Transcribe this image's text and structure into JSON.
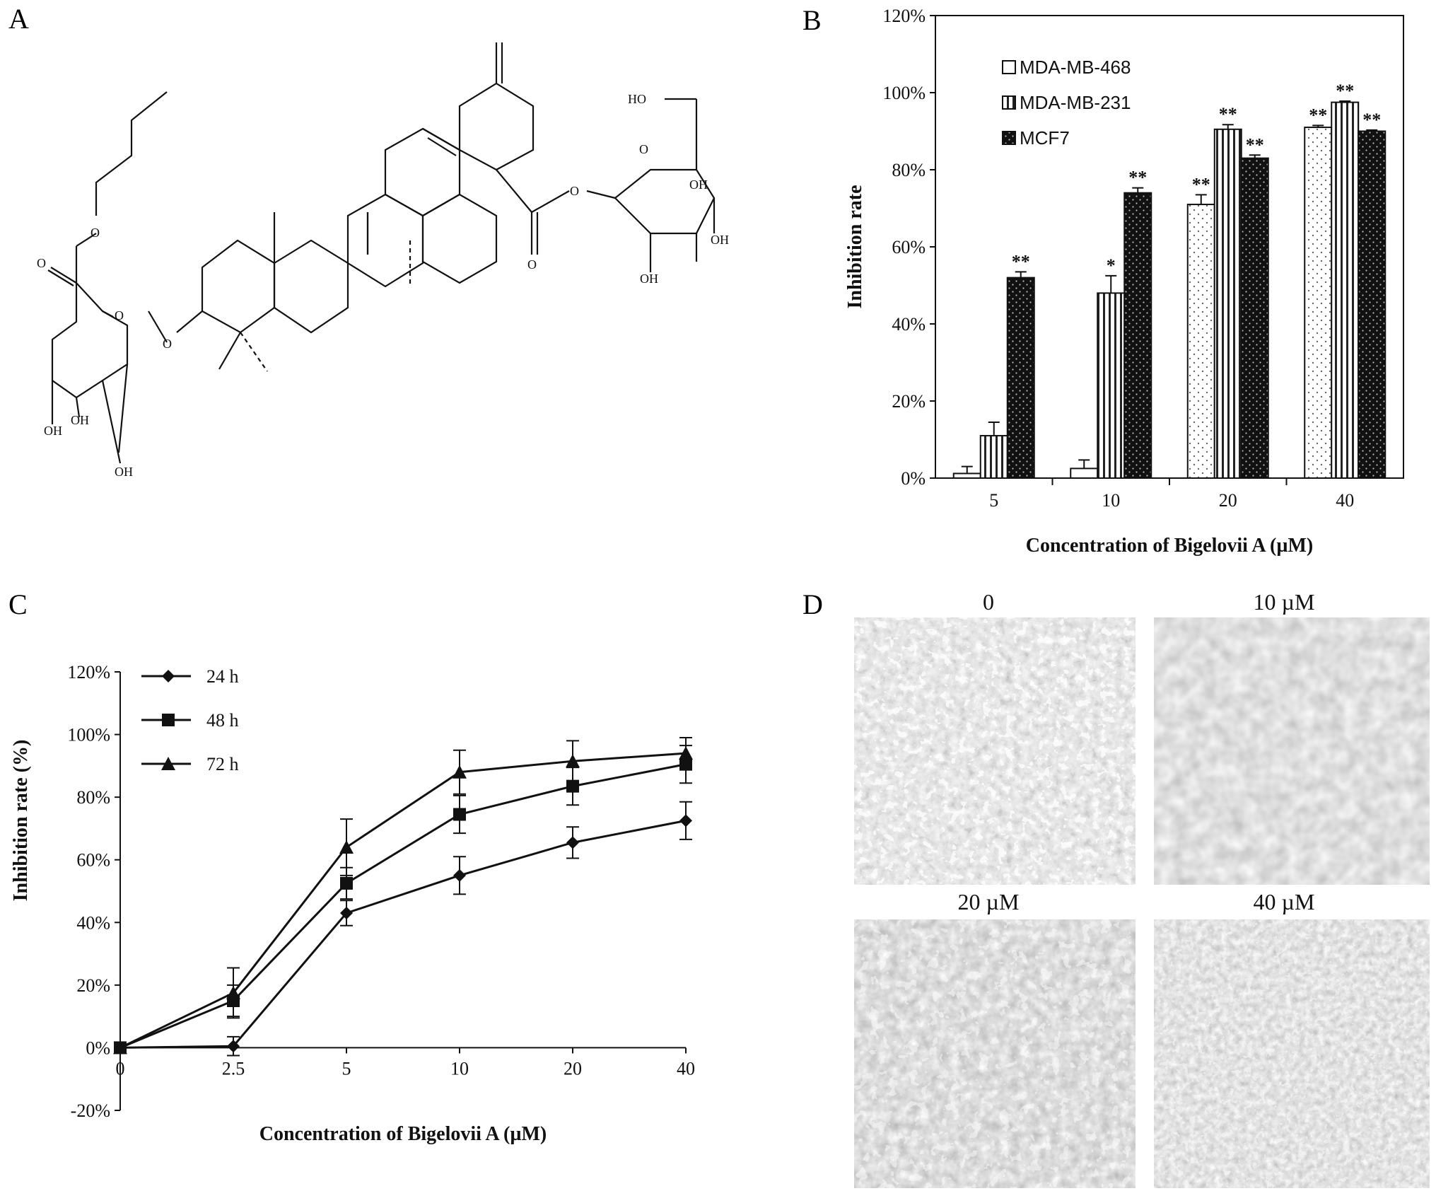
{
  "panels": {
    "a": {
      "letter": "A"
    },
    "b": {
      "letter": "B"
    },
    "c": {
      "letter": "C"
    },
    "d": {
      "letter": "D"
    }
  },
  "structure": {
    "labels": {
      "o_ester_carbonyl": "O",
      "o_ester": "O",
      "o_ring_left": "O",
      "o_link_left": "O",
      "oh_1": "OH",
      "oh_2": "OH",
      "oh_3": "OH",
      "o_ester_right": "O",
      "o_link_right": "O",
      "o_ring_right": "O",
      "ho_right": "HO",
      "oh_r1": "OH",
      "oh_r2": "OH",
      "oh_r3": "OH"
    }
  },
  "chart_data": [
    {
      "type": "bar",
      "panel": "B",
      "categories": [
        "5",
        "10",
        "20",
        "40"
      ],
      "series": [
        {
          "name": "MDA-MB-468",
          "pattern": "open",
          "values": [
            0.012,
            0.025,
            0.71,
            0.91
          ],
          "errors": [
            0.018,
            0.022,
            0.025,
            0.005
          ],
          "significance": [
            "",
            "",
            "**",
            "**"
          ]
        },
        {
          "name": "MDA-MB-231",
          "pattern": "vertical-lines",
          "values": [
            0.11,
            0.48,
            0.905,
            0.975
          ],
          "errors": [
            0.035,
            0.045,
            0.012,
            0.003
          ],
          "significance": [
            "",
            "*",
            "**",
            "**"
          ]
        },
        {
          "name": "MCF7",
          "pattern": "dark-dots",
          "values": [
            0.52,
            0.74,
            0.83,
            0.9
          ],
          "errors": [
            0.015,
            0.013,
            0.008,
            0.003
          ],
          "significance": [
            "**",
            "**",
            "**",
            "**"
          ]
        }
      ],
      "xlabel": "Concentration of Bigelovii A (µM)",
      "ylabel": "Inhibition rate",
      "yticks": [
        "0%",
        "20%",
        "40%",
        "60%",
        "80%",
        "100%",
        "120%"
      ],
      "ylim": [
        0,
        1.2
      ],
      "legend_position": "top-left"
    },
    {
      "type": "line",
      "panel": "C",
      "x": [
        "0",
        "2.5",
        "5",
        "10",
        "20",
        "40"
      ],
      "series": [
        {
          "name": "24 h",
          "marker": "diamond",
          "values": [
            0.0,
            0.005,
            0.43,
            0.55,
            0.655,
            0.725
          ],
          "errors": [
            0.0,
            0.03,
            0.04,
            0.06,
            0.05,
            0.06
          ]
        },
        {
          "name": "48 h",
          "marker": "square",
          "values": [
            0.0,
            0.15,
            0.525,
            0.745,
            0.835,
            0.905
          ],
          "errors": [
            0.0,
            0.05,
            0.05,
            0.06,
            0.06,
            0.06
          ]
        },
        {
          "name": "72 h",
          "marker": "triangle",
          "values": [
            0.0,
            0.175,
            0.64,
            0.88,
            0.915,
            0.94
          ],
          "errors": [
            0.0,
            0.08,
            0.09,
            0.07,
            0.065,
            0.05
          ]
        }
      ],
      "xlabel": "Concentration of Bigelovii A (µM)",
      "ylabel": "Inhibition rate (%)",
      "yticks": [
        "-20%",
        "0%",
        "20%",
        "40%",
        "60%",
        "80%",
        "100%",
        "120%"
      ],
      "ylim": [
        -0.2,
        1.2
      ],
      "legend_position": "top-left"
    }
  ],
  "micrographs": [
    {
      "label": "0"
    },
    {
      "label": "10 µM"
    },
    {
      "label": "20 µM"
    },
    {
      "label": "40 µM"
    }
  ]
}
